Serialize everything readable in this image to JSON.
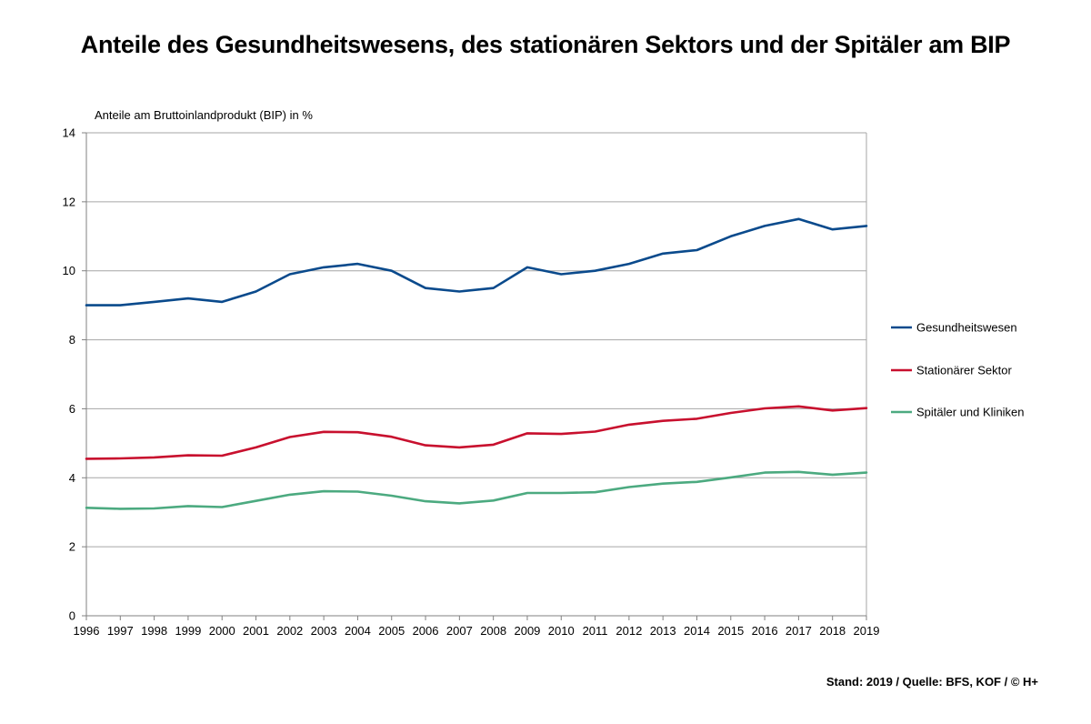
{
  "title": "Anteile des Gesundheitswesens, des stationären Sektors und der Spitäler am BIP",
  "source": "Stand: 2019 / Quelle: BFS, KOF / © H+",
  "chart_data": {
    "type": "line",
    "title": "Anteile des Gesundheitswesens, des stationären Sektors und der Spitäler am BIP",
    "xlabel": "",
    "ylabel": "Anteile am Bruttoinlandprodukt (BIP) in %",
    "ylim": [
      0,
      14
    ],
    "yticks": [
      0,
      2,
      4,
      6,
      8,
      10,
      12,
      14
    ],
    "grid": true,
    "legend_position": "right",
    "categories": [
      "1996",
      "1997",
      "1998",
      "1999",
      "2000",
      "2001",
      "2002",
      "2003",
      "2004",
      "2005",
      "2006",
      "2007",
      "2008",
      "2009",
      "2010",
      "2011",
      "2012",
      "2013",
      "2014",
      "2015",
      "2016",
      "2017",
      "2018",
      "2019"
    ],
    "series": [
      {
        "name": "Gesundheitswesen",
        "color": "#0a4a8c",
        "values": [
          9.0,
          9.0,
          9.1,
          9.2,
          9.1,
          9.4,
          9.9,
          10.1,
          10.2,
          10.0,
          9.5,
          9.4,
          9.5,
          10.1,
          9.9,
          10.0,
          10.2,
          10.5,
          10.6,
          11.0,
          11.3,
          11.5,
          11.2,
          11.3
        ]
      },
      {
        "name": "Stationärer Sektor",
        "color": "#c8102e",
        "values": [
          4.55,
          4.56,
          4.59,
          4.65,
          4.64,
          4.88,
          5.18,
          5.33,
          5.32,
          5.19,
          4.94,
          4.88,
          4.96,
          5.29,
          5.27,
          5.34,
          5.54,
          5.65,
          5.71,
          5.88,
          6.01,
          6.07,
          5.95,
          6.02
        ]
      },
      {
        "name": "Spitäler und Kliniken",
        "color": "#4caa80",
        "values": [
          3.13,
          3.1,
          3.11,
          3.18,
          3.15,
          3.33,
          3.51,
          3.61,
          3.6,
          3.48,
          3.32,
          3.26,
          3.34,
          3.56,
          3.56,
          3.58,
          3.73,
          3.83,
          3.88,
          4.01,
          4.15,
          4.17,
          4.09,
          4.15
        ]
      }
    ]
  }
}
